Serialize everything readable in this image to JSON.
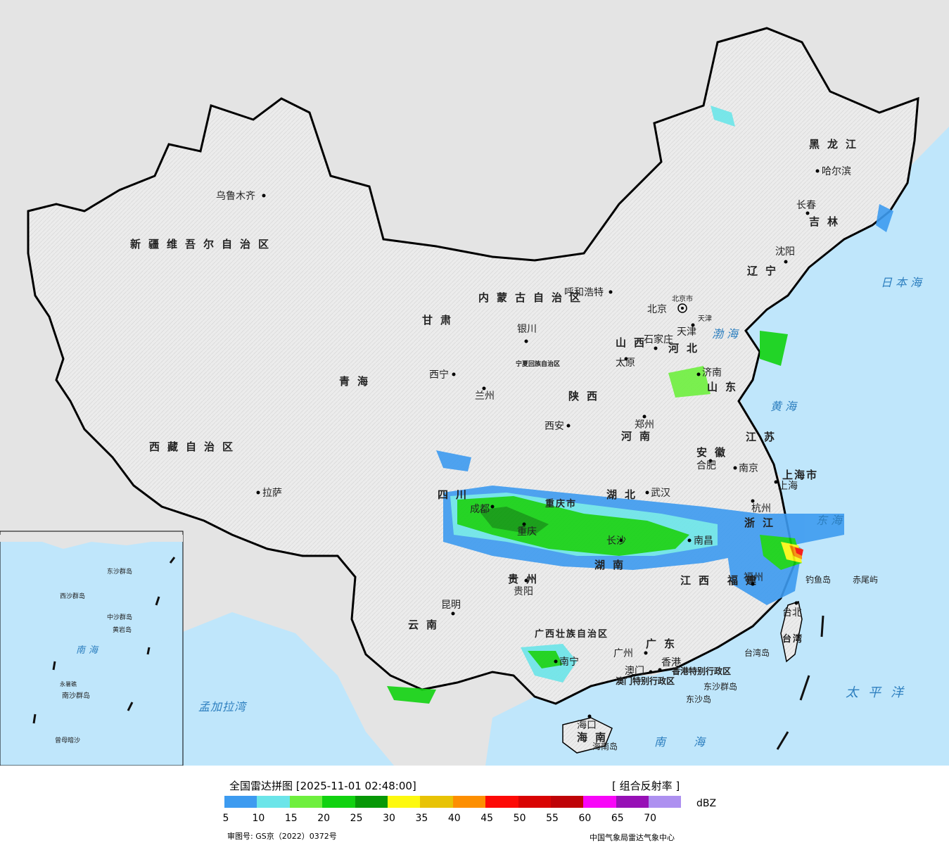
{
  "map": {
    "provinces": [
      "新疆维吾尔自治区",
      "西藏自治区",
      "青海",
      "甘肃",
      "内蒙古自治区",
      "四川",
      "云南",
      "贵州",
      "广西壮族自治区",
      "广东",
      "湖南",
      "湖北",
      "江西",
      "福建",
      "浙江",
      "江苏",
      "安徽",
      "河南",
      "山东",
      "河北",
      "山西",
      "陕西",
      "宁夏回族自治区",
      "辽宁",
      "吉林",
      "黑龙江",
      "海南",
      "台湾",
      "北京市",
      "天津",
      "上海市",
      "重庆市",
      "香港特别行政区",
      "澳门特别行政区"
    ],
    "cities": [
      "乌鲁木齐",
      "拉萨",
      "西宁",
      "兰州",
      "银川",
      "呼和浩特",
      "北京",
      "天津",
      "石家庄",
      "太原",
      "济南",
      "郑州",
      "西安",
      "成都",
      "重庆",
      "武汉",
      "合肥",
      "南京",
      "上海",
      "杭州",
      "南昌",
      "长沙",
      "贵阳",
      "昆明",
      "南宁",
      "广州",
      "香港",
      "澳门",
      "海口",
      "福州",
      "台北",
      "沈阳",
      "长春",
      "哈尔滨"
    ],
    "seas": [
      "渤海",
      "黄海",
      "东海",
      "日本海",
      "太平洋",
      "南海",
      "孟加拉湾"
    ],
    "islands": [
      "钓鱼岛",
      "赤尾屿",
      "台湾岛",
      "东沙群岛",
      "东沙岛",
      "海南岛"
    ],
    "inset_labels": [
      "南海",
      "中沙群岛",
      "西沙群岛",
      "南沙群岛",
      "曾母暗沙",
      "东沙群岛",
      "永暑礁",
      "黄岩岛"
    ]
  },
  "legend": {
    "title": "全国雷达拼图 [2025-11-01 02:48:00]",
    "product": "[ 组合反射率 ]",
    "unit": "dBZ",
    "colors": [
      "#3d9bf0",
      "#6be5e9",
      "#6eef3e",
      "#11d210",
      "#079807",
      "#fdf90f",
      "#e8c305",
      "#fd8f01",
      "#fd0a06",
      "#d90403",
      "#bf0308",
      "#f806f8",
      "#9710b6",
      "#ad90f0"
    ],
    "ticks": [
      "5",
      "10",
      "15",
      "20",
      "25",
      "30",
      "35",
      "40",
      "45",
      "50",
      "55",
      "60",
      "65",
      "70"
    ]
  },
  "footer": {
    "approval": "审图号: GS京（2022）0372号",
    "org": "中国气象局雷达气象中心"
  }
}
